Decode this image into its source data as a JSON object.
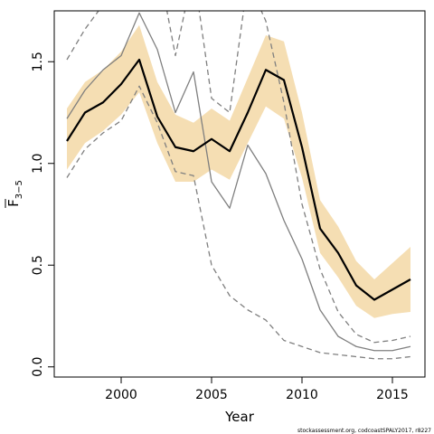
{
  "chart_data": {
    "type": "line",
    "xlabel": "Year",
    "ylabel": {
      "main": "F",
      "sub": "3−5"
    },
    "xlim": [
      1996.3,
      2016.8
    ],
    "ylim": [
      -0.05,
      1.75
    ],
    "xticks": [
      2000,
      2005,
      2010,
      2015
    ],
    "yticks": [
      0.0,
      0.5,
      1.0,
      1.5
    ],
    "ytick_labels": [
      "0.0",
      "0.5",
      "1.0",
      "1.5"
    ],
    "grid": false,
    "x": [
      1997,
      1998,
      1999,
      2000,
      2001,
      2002,
      2003,
      2004,
      2005,
      2006,
      2007,
      2008,
      2009,
      2010,
      2011,
      2012,
      2013,
      2014,
      2015,
      2016
    ],
    "series": [
      {
        "role": "band",
        "color": "#f5deb3",
        "upper": [
          1.27,
          1.4,
          1.46,
          1.55,
          1.68,
          1.4,
          1.24,
          1.2,
          1.27,
          1.21,
          1.42,
          1.63,
          1.6,
          1.25,
          0.82,
          0.69,
          0.52,
          0.43,
          0.51,
          0.59
        ],
        "lower": [
          0.97,
          1.1,
          1.16,
          1.24,
          1.35,
          1.1,
          0.91,
          0.91,
          0.97,
          0.92,
          1.1,
          1.28,
          1.22,
          0.93,
          0.56,
          0.44,
          0.3,
          0.24,
          0.26,
          0.27
        ]
      },
      {
        "role": "estimate",
        "color": "#000000",
        "width": 2.2,
        "dash": "",
        "values": [
          1.11,
          1.25,
          1.3,
          1.39,
          1.51,
          1.23,
          1.08,
          1.06,
          1.12,
          1.06,
          1.25,
          1.46,
          1.41,
          1.08,
          0.68,
          0.56,
          0.4,
          0.33,
          0.38,
          0.43
        ]
      },
      {
        "role": "comparison",
        "color": "#7f7f7f",
        "width": 1.3,
        "dash": "",
        "values": [
          1.22,
          1.36,
          1.46,
          1.53,
          1.74,
          1.56,
          1.25,
          1.45,
          0.91,
          0.78,
          1.09,
          0.95,
          0.72,
          0.53,
          0.28,
          0.15,
          0.1,
          0.08,
          0.08,
          0.1
        ]
      },
      {
        "role": "comparison-upper",
        "color": "#7f7f7f",
        "width": 1.3,
        "dash": "6,4",
        "values": [
          1.51,
          1.66,
          1.78,
          2.0,
          2.2,
          2.0,
          1.53,
          1.95,
          1.32,
          1.25,
          1.9,
          1.7,
          1.3,
          0.8,
          0.48,
          0.27,
          0.16,
          0.12,
          0.13,
          0.15
        ]
      },
      {
        "role": "comparison-lower",
        "color": "#7f7f7f",
        "width": 1.3,
        "dash": "6,4",
        "values": [
          0.93,
          1.07,
          1.15,
          1.21,
          1.38,
          1.2,
          0.96,
          0.94,
          0.5,
          0.35,
          0.28,
          0.23,
          0.13,
          0.1,
          0.07,
          0.06,
          0.05,
          0.04,
          0.04,
          0.05
        ]
      }
    ],
    "footnote": "stockassessment.org, codcoastSPALY2017, r8227"
  }
}
